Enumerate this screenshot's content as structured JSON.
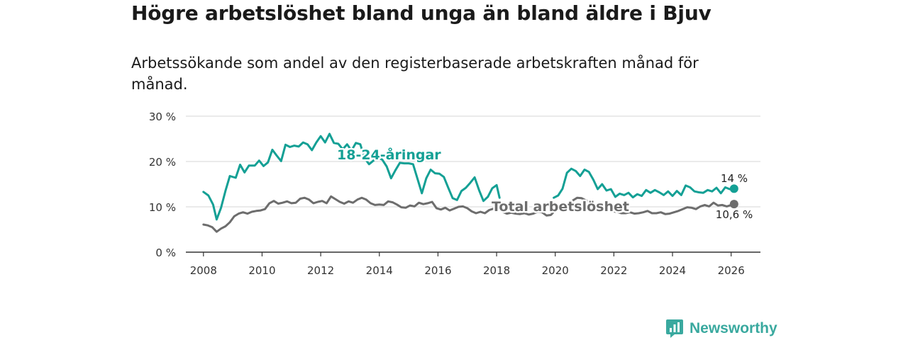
{
  "title": "Högre arbetslöshet bland unga än bland äldre i Bjuv",
  "subtitle": "Arbetssökande som andel av den registerbaserade arbetskraften månad för månad.",
  "brand": {
    "name": "Newsworthy",
    "color": "#3aa99f"
  },
  "chart_data": {
    "type": "line",
    "title": "Högre arbetslöshet bland unga än bland äldre i Bjuv",
    "xlabel": "",
    "ylabel": "",
    "xlim": [
      2007.4,
      2027.0
    ],
    "ylim": [
      0,
      30
    ],
    "y_ticks": [
      0,
      10,
      20,
      30
    ],
    "y_tick_labels": [
      "0 %",
      "10 %",
      "20 %",
      "30 %"
    ],
    "x_ticks": [
      2008,
      2010,
      2012,
      2014,
      2016,
      2018,
      2020,
      2022,
      2024,
      2026
    ],
    "x_tick_labels": [
      "2008",
      "2010",
      "2012",
      "2014",
      "2016",
      "2018",
      "2020",
      "2022",
      "2024",
      "2026"
    ],
    "grid": true,
    "series": [
      {
        "name": "18-24-åringar",
        "color": "#14a095",
        "end_label": "14 %",
        "points": [
          [
            2008.0,
            13.3
          ],
          [
            2008.17,
            12.5
          ],
          [
            2008.33,
            10.5
          ],
          [
            2008.45,
            7.2
          ],
          [
            2008.6,
            9.8
          ],
          [
            2008.75,
            13.5
          ],
          [
            2008.9,
            16.8
          ],
          [
            2009.1,
            16.4
          ],
          [
            2009.25,
            19.3
          ],
          [
            2009.4,
            17.6
          ],
          [
            2009.55,
            19.1
          ],
          [
            2009.75,
            19.1
          ],
          [
            2009.9,
            20.2
          ],
          [
            2010.05,
            19.0
          ],
          [
            2010.2,
            19.8
          ],
          [
            2010.35,
            22.6
          ],
          [
            2010.5,
            21.3
          ],
          [
            2010.65,
            20.1
          ],
          [
            2010.8,
            23.7
          ],
          [
            2010.95,
            23.2
          ],
          [
            2011.1,
            23.5
          ],
          [
            2011.25,
            23.3
          ],
          [
            2011.4,
            24.2
          ],
          [
            2011.55,
            23.8
          ],
          [
            2011.7,
            22.5
          ],
          [
            2011.85,
            24.2
          ],
          [
            2012.0,
            25.6
          ],
          [
            2012.15,
            24.2
          ],
          [
            2012.3,
            26.1
          ],
          [
            2012.45,
            24.1
          ],
          [
            2012.6,
            23.9
          ],
          [
            2012.75,
            22.7
          ],
          [
            2012.9,
            23.8
          ],
          [
            2013.05,
            22.4
          ],
          [
            2013.2,
            24.1
          ],
          [
            2013.35,
            23.8
          ],
          [
            2013.5,
            20.7
          ],
          [
            2013.65,
            19.4
          ],
          [
            2013.8,
            20.2
          ],
          [
            2013.95,
            20.8
          ],
          [
            2014.1,
            20.4
          ],
          [
            2014.25,
            18.9
          ],
          [
            2014.4,
            16.3
          ],
          [
            2014.55,
            18.1
          ],
          [
            2014.7,
            19.7
          ],
          [
            2014.85,
            19.6
          ],
          [
            2015.0,
            19.6
          ],
          [
            2015.15,
            19.4
          ],
          [
            2015.3,
            16.2
          ],
          [
            2015.45,
            13.0
          ],
          [
            2015.6,
            16.3
          ],
          [
            2015.75,
            18.2
          ],
          [
            2015.9,
            17.4
          ],
          [
            2016.05,
            17.3
          ],
          [
            2016.2,
            16.6
          ],
          [
            2016.35,
            14.2
          ],
          [
            2016.5,
            11.9
          ],
          [
            2016.65,
            11.5
          ],
          [
            2016.8,
            13.5
          ],
          [
            2016.95,
            14.2
          ],
          [
            2017.1,
            15.3
          ],
          [
            2017.25,
            16.5
          ],
          [
            2017.4,
            13.7
          ],
          [
            2017.55,
            11.3
          ],
          [
            2017.7,
            12.2
          ],
          [
            2017.85,
            14.1
          ],
          [
            2018.0,
            14.8
          ],
          [
            2018.1,
            12.0
          ]
        ],
        "points_2": [
          [
            2019.95,
            12.0
          ],
          [
            2020.1,
            12.5
          ],
          [
            2020.25,
            14.0
          ],
          [
            2020.4,
            17.5
          ],
          [
            2020.55,
            18.4
          ],
          [
            2020.7,
            17.9
          ],
          [
            2020.85,
            16.8
          ],
          [
            2021.0,
            18.2
          ],
          [
            2021.15,
            17.7
          ],
          [
            2021.3,
            16.0
          ],
          [
            2021.45,
            13.9
          ],
          [
            2021.6,
            15.0
          ],
          [
            2021.75,
            13.6
          ],
          [
            2021.9,
            13.9
          ],
          [
            2022.05,
            12.2
          ],
          [
            2022.2,
            12.9
          ],
          [
            2022.35,
            12.6
          ],
          [
            2022.5,
            13.1
          ],
          [
            2022.65,
            12.1
          ],
          [
            2022.8,
            12.8
          ],
          [
            2022.95,
            12.4
          ],
          [
            2023.1,
            13.7
          ],
          [
            2023.25,
            13.1
          ],
          [
            2023.4,
            13.7
          ],
          [
            2023.55,
            13.2
          ],
          [
            2023.7,
            12.6
          ],
          [
            2023.85,
            13.4
          ],
          [
            2024.0,
            12.4
          ],
          [
            2024.15,
            13.5
          ],
          [
            2024.3,
            12.6
          ],
          [
            2024.45,
            14.7
          ],
          [
            2024.6,
            14.3
          ],
          [
            2024.75,
            13.4
          ],
          [
            2024.9,
            13.2
          ],
          [
            2025.05,
            13.1
          ],
          [
            2025.2,
            13.7
          ],
          [
            2025.35,
            13.4
          ],
          [
            2025.5,
            14.2
          ],
          [
            2025.65,
            13.0
          ],
          [
            2025.8,
            14.3
          ],
          [
            2025.95,
            13.9
          ],
          [
            2026.1,
            14.0
          ]
        ]
      },
      {
        "name": "Total arbetslöshet",
        "color": "#6d6d6d",
        "end_label": "10,6 %",
        "points": [
          [
            2008.0,
            6.1
          ],
          [
            2008.15,
            5.9
          ],
          [
            2008.3,
            5.5
          ],
          [
            2008.45,
            4.5
          ],
          [
            2008.6,
            5.2
          ],
          [
            2008.75,
            5.7
          ],
          [
            2008.9,
            6.6
          ],
          [
            2009.05,
            7.9
          ],
          [
            2009.2,
            8.5
          ],
          [
            2009.35,
            8.8
          ],
          [
            2009.5,
            8.5
          ],
          [
            2009.65,
            8.9
          ],
          [
            2009.8,
            9.1
          ],
          [
            2009.95,
            9.2
          ],
          [
            2010.1,
            9.5
          ],
          [
            2010.25,
            10.8
          ],
          [
            2010.4,
            11.3
          ],
          [
            2010.55,
            10.7
          ],
          [
            2010.7,
            10.9
          ],
          [
            2010.85,
            11.2
          ],
          [
            2011.0,
            10.8
          ],
          [
            2011.15,
            10.9
          ],
          [
            2011.3,
            11.8
          ],
          [
            2011.45,
            12.0
          ],
          [
            2011.6,
            11.6
          ],
          [
            2011.75,
            10.8
          ],
          [
            2011.9,
            11.1
          ],
          [
            2012.05,
            11.3
          ],
          [
            2012.2,
            10.8
          ],
          [
            2012.35,
            12.3
          ],
          [
            2012.5,
            11.7
          ],
          [
            2012.65,
            11.1
          ],
          [
            2012.8,
            10.7
          ],
          [
            2012.95,
            11.2
          ],
          [
            2013.1,
            10.9
          ],
          [
            2013.25,
            11.6
          ],
          [
            2013.4,
            12.0
          ],
          [
            2013.55,
            11.6
          ],
          [
            2013.7,
            10.8
          ],
          [
            2013.85,
            10.4
          ],
          [
            2014.0,
            10.5
          ],
          [
            2014.15,
            10.4
          ],
          [
            2014.3,
            11.2
          ],
          [
            2014.45,
            11.0
          ],
          [
            2014.6,
            10.5
          ],
          [
            2014.75,
            9.9
          ],
          [
            2014.9,
            9.8
          ],
          [
            2015.05,
            10.3
          ],
          [
            2015.2,
            10.1
          ],
          [
            2015.35,
            10.9
          ],
          [
            2015.5,
            10.6
          ],
          [
            2015.65,
            10.8
          ],
          [
            2015.8,
            11.1
          ],
          [
            2015.95,
            9.7
          ],
          [
            2016.1,
            9.4
          ],
          [
            2016.25,
            9.8
          ],
          [
            2016.4,
            9.2
          ],
          [
            2016.55,
            9.6
          ],
          [
            2016.7,
            10.0
          ],
          [
            2016.85,
            10.1
          ],
          [
            2017.0,
            9.7
          ],
          [
            2017.15,
            9.0
          ],
          [
            2017.3,
            8.6
          ],
          [
            2017.45,
            8.9
          ],
          [
            2017.6,
            8.6
          ],
          [
            2017.75,
            9.3
          ],
          [
            2017.9,
            9.6
          ],
          [
            2018.05,
            9.9
          ],
          [
            2018.2,
            8.9
          ],
          [
            2018.35,
            8.5
          ],
          [
            2018.5,
            8.7
          ],
          [
            2018.65,
            8.5
          ],
          [
            2018.8,
            8.4
          ],
          [
            2018.95,
            8.6
          ],
          [
            2019.1,
            8.3
          ],
          [
            2019.25,
            8.5
          ],
          [
            2019.4,
            8.9
          ],
          [
            2019.55,
            8.8
          ],
          [
            2019.7,
            8.1
          ],
          [
            2019.85,
            8.2
          ],
          [
            2020.0,
            9.2
          ],
          [
            2020.15,
            9.6
          ],
          [
            2020.3,
            10.0
          ],
          [
            2020.45,
            10.7
          ],
          [
            2020.6,
            11.4
          ],
          [
            2020.75,
            12.0
          ],
          [
            2020.9,
            11.9
          ],
          [
            2021.05,
            11.4
          ],
          [
            2021.2,
            11.0
          ],
          [
            2021.35,
            10.6
          ],
          [
            2021.5,
            10.2
          ],
          [
            2021.65,
            9.7
          ],
          [
            2021.8,
            9.3
          ],
          [
            2021.95,
            9.0
          ],
          [
            2022.1,
            8.9
          ],
          [
            2022.25,
            8.6
          ],
          [
            2022.4,
            8.6
          ],
          [
            2022.55,
            8.8
          ],
          [
            2022.7,
            8.5
          ],
          [
            2022.85,
            8.6
          ],
          [
            2023.0,
            8.8
          ],
          [
            2023.15,
            9.1
          ],
          [
            2023.3,
            8.6
          ],
          [
            2023.45,
            8.6
          ],
          [
            2023.6,
            8.8
          ],
          [
            2023.75,
            8.4
          ],
          [
            2023.9,
            8.5
          ],
          [
            2024.05,
            8.8
          ],
          [
            2024.2,
            9.1
          ],
          [
            2024.35,
            9.5
          ],
          [
            2024.5,
            9.9
          ],
          [
            2024.65,
            9.8
          ],
          [
            2024.8,
            9.5
          ],
          [
            2024.95,
            10.1
          ],
          [
            2025.1,
            10.4
          ],
          [
            2025.25,
            10.1
          ],
          [
            2025.4,
            10.9
          ],
          [
            2025.55,
            10.3
          ],
          [
            2025.7,
            10.4
          ],
          [
            2025.85,
            10.1
          ],
          [
            2026.0,
            10.4
          ],
          [
            2026.1,
            10.6
          ]
        ]
      }
    ]
  }
}
